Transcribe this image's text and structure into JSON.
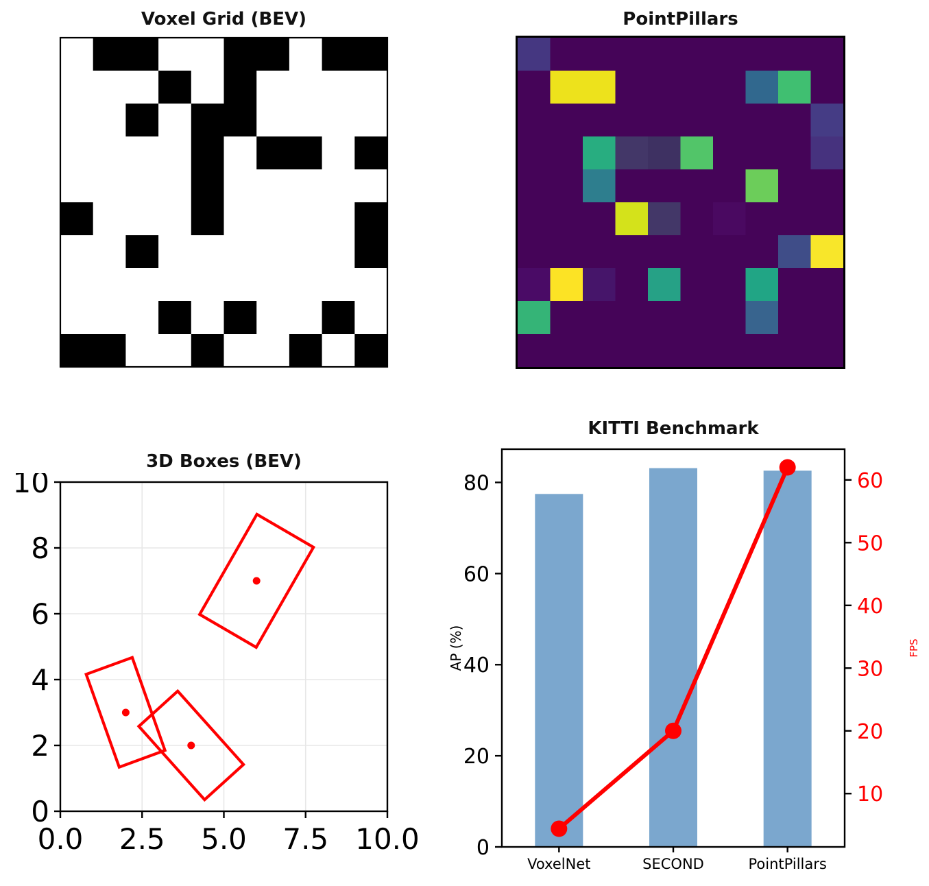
{
  "chart_data": [
    {
      "type": "heatmap",
      "panel": "top-left",
      "title": "Voxel Grid (BEV)",
      "rows": 10,
      "cols": 10,
      "values": [
        [
          0,
          1,
          1,
          0,
          0,
          1,
          1,
          0,
          1,
          1
        ],
        [
          0,
          0,
          0,
          1,
          0,
          1,
          0,
          0,
          0,
          0
        ],
        [
          0,
          0,
          1,
          0,
          1,
          1,
          0,
          0,
          0,
          0
        ],
        [
          0,
          0,
          0,
          0,
          1,
          0,
          1,
          1,
          0,
          1
        ],
        [
          0,
          0,
          0,
          0,
          1,
          0,
          0,
          0,
          0,
          0
        ],
        [
          1,
          0,
          0,
          0,
          1,
          0,
          0,
          0,
          0,
          1
        ],
        [
          0,
          0,
          1,
          0,
          0,
          0,
          0,
          0,
          0,
          1
        ],
        [
          0,
          0,
          0,
          0,
          0,
          0,
          0,
          0,
          0,
          0
        ],
        [
          0,
          0,
          0,
          1,
          0,
          1,
          0,
          0,
          1,
          0
        ],
        [
          1,
          1,
          0,
          0,
          1,
          0,
          0,
          1,
          0,
          1
        ]
      ],
      "value_colors": {
        "0": "#ffffff",
        "1": "#000000"
      },
      "border_color": "#000000"
    },
    {
      "type": "heatmap",
      "panel": "top-right",
      "title": "PointPillars",
      "rows": 10,
      "cols": 10,
      "colormap": "viridis",
      "background_color": "#450458",
      "values": [
        [
          0.16,
          0,
          0,
          0,
          0,
          0,
          0,
          0,
          0,
          0
        ],
        [
          0,
          0.95,
          0.95,
          0,
          0,
          0,
          0,
          0.3,
          0.72,
          0
        ],
        [
          0,
          0,
          0,
          0,
          0,
          0,
          0,
          0,
          0,
          0.17
        ],
        [
          0,
          0,
          0.62,
          0.13,
          0.11,
          0.74,
          0,
          0,
          0,
          0.15
        ],
        [
          0,
          0,
          0.38,
          0,
          0,
          0,
          0,
          0.78,
          0,
          0
        ],
        [
          0,
          0,
          0,
          0.9,
          0.13,
          0,
          0.03,
          0,
          0,
          0
        ],
        [
          0,
          0,
          0,
          0,
          0,
          0,
          0,
          0,
          0.22,
          0.97
        ],
        [
          0.04,
          1.0,
          0.06,
          0,
          0.55,
          0,
          0,
          0.55,
          0,
          0
        ],
        [
          0.65,
          0,
          0,
          0,
          0,
          0,
          0,
          0.32,
          0,
          0
        ],
        [
          0,
          0,
          0,
          0,
          0,
          0,
          0,
          0,
          0,
          0
        ]
      ],
      "cell_colors": [
        [
          "#453781",
          "#450458",
          "#450458",
          "#450458",
          "#450458",
          "#450458",
          "#450458",
          "#450458",
          "#450458",
          "#450458"
        ],
        [
          "#450458",
          "#EDE21C",
          "#EDE21C",
          "#450458",
          "#450458",
          "#450458",
          "#450458",
          "#31688E",
          "#40BF71",
          "#450458"
        ],
        [
          "#450458",
          "#450458",
          "#450458",
          "#450458",
          "#450458",
          "#450458",
          "#450458",
          "#450458",
          "#450458",
          "#453C85"
        ],
        [
          "#450458",
          "#450458",
          "#28AD80",
          "#433768",
          "#3E3162",
          "#52C569",
          "#450458",
          "#450458",
          "#450458",
          "#46327E"
        ],
        [
          "#450458",
          "#450458",
          "#2E7E8E",
          "#450458",
          "#450458",
          "#450458",
          "#450458",
          "#6CCD5A",
          "#450458",
          "#450458"
        ],
        [
          "#450458",
          "#450458",
          "#450458",
          "#D4E21B",
          "#433768",
          "#450458",
          "#4A0961",
          "#450458",
          "#450458",
          "#450458"
        ],
        [
          "#450458",
          "#450458",
          "#450458",
          "#450458",
          "#450458",
          "#450458",
          "#450458",
          "#450458",
          "#3F4D88",
          "#F8E62A"
        ],
        [
          "#4A0B66",
          "#FCE325",
          "#46156A",
          "#450458",
          "#26A186",
          "#450458",
          "#450458",
          "#21A585",
          "#450458",
          "#450458"
        ],
        [
          "#35B477",
          "#450458",
          "#450458",
          "#450458",
          "#450458",
          "#450458",
          "#450458",
          "#38648E",
          "#450458",
          "#450458"
        ],
        [
          "#450458",
          "#450458",
          "#450458",
          "#450458",
          "#450458",
          "#450458",
          "#450458",
          "#450458",
          "#450458",
          "#450458"
        ]
      ],
      "border_color": "#000000"
    },
    {
      "type": "scatter",
      "panel": "bottom-left",
      "title": "3D Boxes (BEV)",
      "xlim": [
        0,
        10
      ],
      "ylim": [
        0,
        10
      ],
      "xticks": [
        0,
        2.5,
        5,
        7.5,
        10
      ],
      "xtick_labels": [
        "0.0",
        "2.5",
        "5.0",
        "7.5",
        "10.0"
      ],
      "yticks": [
        0,
        2,
        4,
        6,
        8,
        10
      ],
      "ytick_labels": [
        "0",
        "2",
        "4",
        "6",
        "8",
        "10"
      ],
      "grid": true,
      "box_color": "#FF0000",
      "boxes": [
        {
          "center": [
            2,
            3
          ],
          "corners": [
            [
              0.79,
              4.16
            ],
            [
              2.2,
              4.67
            ],
            [
              3.2,
              1.85
            ],
            [
              1.8,
              1.34
            ]
          ]
        },
        {
          "center": [
            4,
            2
          ],
          "corners": [
            [
              3.59,
              3.65
            ],
            [
              5.6,
              1.42
            ],
            [
              4.41,
              0.35
            ],
            [
              2.4,
              2.58
            ]
          ]
        },
        {
          "center": [
            6,
            7
          ],
          "corners": [
            [
              6.01,
              9.02
            ],
            [
              7.74,
              8.02
            ],
            [
              5.99,
              4.98
            ],
            [
              4.26,
              5.98
            ]
          ]
        }
      ]
    },
    {
      "type": "bar",
      "panel": "bottom-right",
      "title": "KITTI Benchmark",
      "categories": [
        "VoxelNet",
        "SECOND",
        "PointPillars"
      ],
      "series": [
        {
          "name": "AP (%)",
          "kind": "bar",
          "values": [
            77.47,
            83.13,
            82.58
          ],
          "color": "#7BA7CE"
        },
        {
          "name": "FPS",
          "kind": "line",
          "values": [
            4.4,
            20,
            62
          ],
          "color": "#FF0000"
        }
      ],
      "ylabel_left": "AP (%)",
      "ylabel_right": "FPS",
      "yticks_left": [
        0,
        20,
        40,
        60,
        80
      ],
      "yticks_right": [
        10,
        20,
        30,
        40,
        50,
        60
      ],
      "ylim_left": [
        0,
        87.3
      ],
      "ylim_right": [
        1.5,
        64.9
      ],
      "axis_color_left": "#000000",
      "axis_color_right": "#FF0000",
      "legend": "none"
    }
  ]
}
